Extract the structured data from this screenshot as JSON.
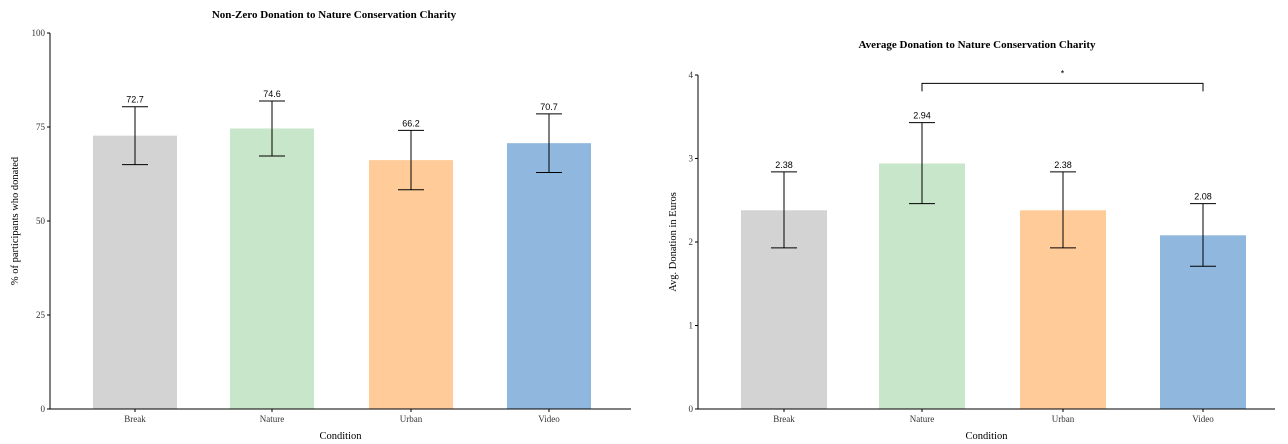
{
  "chart_data": [
    {
      "type": "bar",
      "title": "Non-Zero Donation to Nature Conservation Charity",
      "xlabel": "Condition",
      "ylabel": "% of participants who donated",
      "categories": [
        "Break",
        "Nature",
        "Urban",
        "Video"
      ],
      "values": [
        72.7,
        74.6,
        66.2,
        70.7
      ],
      "value_labels": [
        "72.7",
        "74.6",
        "66.2",
        "70.7"
      ],
      "error_low": [
        65.0,
        67.3,
        58.3,
        62.9
      ],
      "error_high": [
        80.4,
        81.9,
        74.1,
        78.5
      ],
      "ylim": [
        0,
        100
      ],
      "yticks": [
        0,
        25,
        50,
        75,
        100
      ],
      "ytick_labels": [
        "0",
        "25",
        "50",
        "75",
        "100"
      ],
      "colors": [
        "#d3d3d3",
        "#c8e6c9",
        "#ffcc99",
        "#90b8de"
      ],
      "grid": false,
      "legend": "none"
    },
    {
      "type": "bar",
      "title": "Average Donation to Nature Conservation Charity",
      "xlabel": "Condition",
      "ylabel": "Avg. Donation in Euros",
      "categories": [
        "Break",
        "Nature",
        "Urban",
        "Video"
      ],
      "values": [
        2.38,
        2.94,
        2.38,
        2.08
      ],
      "value_labels": [
        "2.38",
        "2.94",
        "2.38",
        "2.08"
      ],
      "error_low": [
        1.93,
        2.46,
        1.93,
        1.71
      ],
      "error_high": [
        2.84,
        3.43,
        2.84,
        2.46
      ],
      "ylim": [
        0,
        4
      ],
      "yticks": [
        0,
        1,
        2,
        3,
        4
      ],
      "ytick_labels": [
        "0",
        "1",
        "2",
        "3",
        "4"
      ],
      "colors": [
        "#d3d3d3",
        "#c8e6c9",
        "#ffcc99",
        "#90b8de"
      ],
      "grid": false,
      "legend": "none",
      "significance": {
        "from": "Nature",
        "to": "Video",
        "label": "*",
        "y": 3.9
      }
    }
  ]
}
